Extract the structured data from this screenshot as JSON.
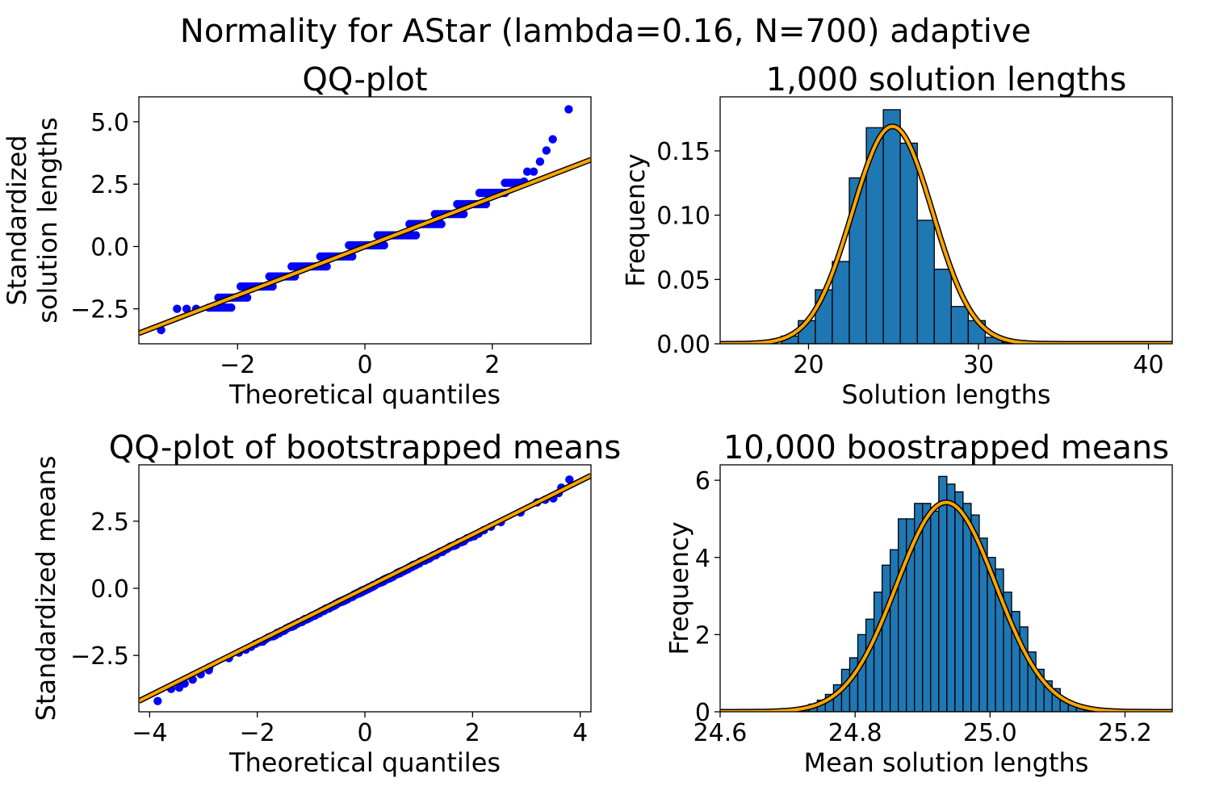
{
  "suptitle": "Normality for AStar (lambda=0.16, N=700) adaptive",
  "colors": {
    "bar": "#1f77b4",
    "fit_outer": "#000000",
    "fit_inner": "#ffa500",
    "points": "#0000ff"
  },
  "chart_data": [
    {
      "type": "scatter",
      "title": "QQ-plot",
      "xlabel": "Theoretical quantiles",
      "ylabel": [
        "Standardized",
        "solution lengths"
      ],
      "xlim": [
        -3.55,
        3.55
      ],
      "ylim": [
        -3.9,
        6.0
      ],
      "xticks": [
        -2,
        0,
        2
      ],
      "yticks": [
        -2.5,
        0.0,
        2.5,
        5.0
      ],
      "xtick_labels": [
        "−2",
        "0",
        "2"
      ],
      "ytick_labels": [
        "−2.5",
        "0.0",
        "2.5",
        "5.0"
      ],
      "fit_line": {
        "slope": 0.98,
        "intercept": 0.0
      },
      "steps": [
        {
          "y": -2.45,
          "x": [
            -2.45,
            -2.1
          ]
        },
        {
          "y": -2.05,
          "x": [
            -2.3,
            -1.85
          ]
        },
        {
          "y": -1.6,
          "x": [
            -1.95,
            -1.45
          ]
        },
        {
          "y": -1.2,
          "x": [
            -1.5,
            -1.1
          ]
        },
        {
          "y": -0.8,
          "x": [
            -1.15,
            -0.6
          ]
        },
        {
          "y": -0.4,
          "x": [
            -0.7,
            -0.2
          ]
        },
        {
          "y": 0.05,
          "x": [
            -0.25,
            0.3
          ]
        },
        {
          "y": 0.45,
          "x": [
            0.2,
            0.8
          ]
        },
        {
          "y": 0.9,
          "x": [
            0.7,
            1.2
          ]
        },
        {
          "y": 1.3,
          "x": [
            1.1,
            1.55
          ]
        },
        {
          "y": 1.7,
          "x": [
            1.45,
            1.9
          ]
        },
        {
          "y": 2.15,
          "x": [
            1.8,
            2.2
          ]
        },
        {
          "y": 2.55,
          "x": [
            2.2,
            2.5
          ]
        }
      ],
      "tail_points": [
        {
          "x": -3.2,
          "y": -3.35
        },
        {
          "x": -2.95,
          "y": -2.5
        },
        {
          "x": -2.8,
          "y": -2.5
        },
        {
          "x": -2.65,
          "y": -2.5
        },
        {
          "x": 2.5,
          "y": 2.6
        },
        {
          "x": 2.55,
          "y": 3.0
        },
        {
          "x": 2.65,
          "y": 3.0
        },
        {
          "x": 2.75,
          "y": 3.4
        },
        {
          "x": 2.85,
          "y": 3.85
        },
        {
          "x": 2.95,
          "y": 4.3
        },
        {
          "x": 3.2,
          "y": 5.5
        }
      ]
    },
    {
      "type": "bar",
      "title": "1,000 solution lengths",
      "xlabel": "Solution lengths",
      "ylabel": [
        "Frequency"
      ],
      "xlim": [
        14.8,
        41.4
      ],
      "ylim": [
        0,
        0.192
      ],
      "xticks": [
        20,
        30,
        40
      ],
      "yticks": [
        0.0,
        0.05,
        0.1,
        0.15
      ],
      "xtick_labels": [
        "20",
        "30",
        "40"
      ],
      "ytick_labels": [
        "0.00",
        "0.05",
        "0.10",
        "0.15"
      ],
      "bin_edges": [
        18.4,
        19.4,
        20.4,
        21.4,
        22.4,
        23.4,
        24.4,
        25.4,
        26.4,
        27.4,
        28.4,
        29.4,
        30.4,
        31.4,
        32.4
      ],
      "values": [
        0.006,
        0.018,
        0.042,
        0.064,
        0.129,
        0.168,
        0.182,
        0.156,
        0.096,
        0.058,
        0.029,
        0.018,
        0.005,
        0.001
      ],
      "normal_fit": {
        "mean": 24.94,
        "sd": 2.36
      }
    },
    {
      "type": "scatter",
      "title": "QQ-plot of bootstrapped means",
      "xlabel": "Theoretical quantiles",
      "ylabel": [
        "Standardized means"
      ],
      "xlim": [
        -4.2,
        4.2
      ],
      "ylim": [
        -4.6,
        4.6
      ],
      "xticks": [
        -4,
        -2,
        0,
        2,
        4
      ],
      "yticks": [
        -2.5,
        0.0,
        2.5
      ],
      "xtick_labels": [
        "−4",
        "−2",
        "0",
        "2",
        "4"
      ],
      "ytick_labels": [
        "−2.5",
        "0.0",
        "2.5"
      ],
      "fit_line": {
        "slope": 1.0,
        "intercept": 0.0
      },
      "tail_points": [
        {
          "x": -3.85,
          "y": -4.2
        },
        {
          "x": -3.6,
          "y": -3.75
        },
        {
          "x": -3.45,
          "y": -3.7
        },
        {
          "x": -3.35,
          "y": -3.55
        },
        {
          "x": -3.2,
          "y": -3.4
        },
        {
          "x": -3.05,
          "y": -3.2
        },
        {
          "x": -2.9,
          "y": -3.05
        },
        {
          "x": 3.2,
          "y": 3.2
        },
        {
          "x": 3.35,
          "y": 3.3
        },
        {
          "x": 3.5,
          "y": 3.35
        },
        {
          "x": 3.6,
          "y": 3.55
        },
        {
          "x": 3.65,
          "y": 3.75
        },
        {
          "x": 3.8,
          "y": 4.05
        }
      ]
    },
    {
      "type": "bar",
      "title": "10,000 boostrapped means",
      "xlabel": "Mean solution lengths",
      "ylabel": [
        "Frequency"
      ],
      "xlim": [
        24.6,
        25.27
      ],
      "ylim": [
        0,
        6.4
      ],
      "xticks": [
        24.6,
        24.8,
        25.0,
        25.2
      ],
      "yticks": [
        0,
        2,
        4,
        6
      ],
      "xtick_labels": [
        "24.6",
        "24.8",
        "25.0",
        "25.2"
      ],
      "ytick_labels": [
        "0",
        "2",
        "4",
        "6"
      ],
      "bin_edges": [
        24.72,
        24.732,
        24.744,
        24.756,
        24.768,
        24.78,
        24.792,
        24.804,
        24.816,
        24.828,
        24.84,
        24.852,
        24.864,
        24.876,
        24.888,
        24.9,
        24.912,
        24.924,
        24.936,
        24.948,
        24.96,
        24.972,
        24.984,
        24.996,
        25.008,
        25.02,
        25.032,
        25.044,
        25.056,
        25.068,
        25.08,
        25.092,
        25.104,
        25.116,
        25.128,
        25.14,
        25.152
      ],
      "values": [
        0.1,
        0.2,
        0.3,
        0.45,
        0.7,
        1.1,
        1.4,
        2.0,
        2.4,
        3.1,
        3.8,
        4.2,
        5.0,
        5.0,
        5.4,
        5.4,
        5.2,
        6.1,
        5.9,
        5.7,
        5.4,
        5.1,
        4.5,
        4.0,
        3.7,
        3.1,
        2.6,
        2.2,
        1.55,
        1.1,
        0.8,
        0.6,
        0.3,
        0.2,
        0.1,
        0.05
      ],
      "normal_fit": {
        "mean": 24.935,
        "sd": 0.0735
      }
    }
  ]
}
